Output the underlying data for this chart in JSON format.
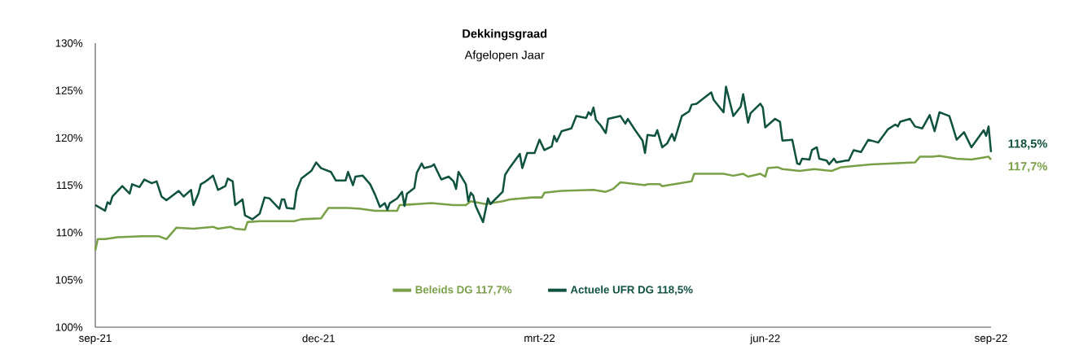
{
  "chart_data": {
    "type": "line",
    "title": "Dekkingsgraad",
    "subtitle": "Afgelopen Jaar",
    "xlim": [
      "2021-09-01",
      "2022-09-01"
    ],
    "xticks": [
      {
        "value": "2021-09-01",
        "label": "sep-21"
      },
      {
        "value": "2021-12-01",
        "label": "dec-21"
      },
      {
        "value": "2022-03-01",
        "label": "mrt-22"
      },
      {
        "value": "2022-06-01",
        "label": "jun-22"
      },
      {
        "value": "2022-09-01",
        "label": "sep-22"
      }
    ],
    "ylim": [
      100,
      130
    ],
    "yticks": [
      {
        "value": 100,
        "label": "100%"
      },
      {
        "value": 105,
        "label": "105%"
      },
      {
        "value": 110,
        "label": "110%"
      },
      {
        "value": 115,
        "label": "115%"
      },
      {
        "value": 120,
        "label": "120%"
      },
      {
        "value": 125,
        "label": "125%"
      },
      {
        "value": 130,
        "label": "130%"
      }
    ],
    "grid": false,
    "legend": "bottom",
    "marker": "none",
    "line_style": "solid",
    "series": [
      {
        "name": "Beleids DG 117,7%",
        "color": "#78a046",
        "x": [
          "2021-09-01",
          "2021-09-02",
          "2021-09-05",
          "2021-09-10",
          "2021-09-20",
          "2021-09-27",
          "2021-09-30",
          "2021-10-04",
          "2021-10-11",
          "2021-10-19",
          "2021-10-21",
          "2021-10-26",
          "2021-10-28",
          "2021-11-01",
          "2021-11-02",
          "2021-11-07",
          "2021-11-21",
          "2021-11-24",
          "2021-12-02",
          "2021-12-05",
          "2021-12-13",
          "2021-12-18",
          "2021-12-24",
          "2022-01-02",
          "2022-01-03",
          "2022-01-10",
          "2022-01-16",
          "2022-01-25",
          "2022-01-30",
          "2022-02-01",
          "2022-02-07",
          "2022-02-14",
          "2022-02-17",
          "2022-02-26",
          "2022-03-02",
          "2022-03-03",
          "2022-03-10",
          "2022-03-23",
          "2022-03-28",
          "2022-03-31",
          "2022-04-03",
          "2022-04-13",
          "2022-04-14",
          "2022-04-19",
          "2022-04-20",
          "2022-04-27",
          "2022-05-02",
          "2022-05-03",
          "2022-05-15",
          "2022-05-19",
          "2022-05-23",
          "2022-05-25",
          "2022-05-30",
          "2022-06-01",
          "2022-06-02",
          "2022-06-06",
          "2022-06-08",
          "2022-06-15",
          "2022-06-21",
          "2022-06-28",
          "2022-07-02",
          "2022-07-14",
          "2022-08-01",
          "2022-08-03",
          "2022-08-08",
          "2022-08-11",
          "2022-08-18",
          "2022-08-24",
          "2022-08-31",
          "2022-09-01"
        ],
        "values": [
          108.1,
          109.3,
          109.3,
          109.5,
          109.6,
          109.6,
          109.3,
          110.5,
          110.4,
          110.6,
          110.4,
          110.6,
          110.4,
          110.3,
          111.1,
          111.2,
          111.2,
          111.4,
          111.5,
          112.6,
          112.6,
          112.5,
          112.3,
          112.3,
          112.9,
          113.0,
          113.1,
          112.9,
          112.9,
          113.3,
          113.0,
          113.3,
          113.5,
          113.7,
          113.7,
          114.2,
          114.4,
          114.5,
          114.3,
          114.6,
          115.3,
          115.0,
          115.1,
          115.1,
          114.9,
          115.2,
          115.4,
          116.2,
          116.2,
          116.0,
          116.2,
          115.9,
          116.2,
          115.9,
          116.8,
          116.9,
          116.7,
          116.5,
          116.7,
          116.5,
          116.9,
          117.2,
          117.4,
          118.0,
          118.0,
          118.1,
          117.8,
          117.7,
          118.0,
          117.7
        ]
      },
      {
        "name": "Actuele UFR DG 118,5%",
        "color": "#0f5240",
        "x": [
          "2021-09-01",
          "2021-09-05",
          "2021-09-06",
          "2021-09-07",
          "2021-09-08",
          "2021-09-12",
          "2021-09-15",
          "2021-09-16",
          "2021-09-19",
          "2021-09-21",
          "2021-09-24",
          "2021-09-26",
          "2021-09-28",
          "2021-09-30",
          "2021-10-05",
          "2021-10-07",
          "2021-10-10",
          "2021-10-11",
          "2021-10-13",
          "2021-10-14",
          "2021-10-16",
          "2021-10-19",
          "2021-10-21",
          "2021-10-24",
          "2021-10-25",
          "2021-10-27",
          "2021-10-28",
          "2021-10-31",
          "2021-11-01",
          "2021-11-04",
          "2021-11-07",
          "2021-11-09",
          "2021-11-11",
          "2021-11-15",
          "2021-11-16",
          "2021-11-17",
          "2021-11-18",
          "2021-11-21",
          "2021-11-22",
          "2021-11-24",
          "2021-11-28",
          "2021-11-30",
          "2021-12-02",
          "2021-12-06",
          "2021-12-08",
          "2021-12-12",
          "2021-12-13",
          "2021-12-15",
          "2021-12-16",
          "2021-12-19",
          "2021-12-22",
          "2021-12-24",
          "2021-12-26",
          "2021-12-28",
          "2021-12-29",
          "2021-12-30",
          "2022-01-02",
          "2022-01-04",
          "2022-01-05",
          "2022-01-06",
          "2022-01-09",
          "2022-01-10",
          "2022-01-12",
          "2022-01-13",
          "2022-01-16",
          "2022-01-17",
          "2022-01-20",
          "2022-01-23",
          "2022-01-25",
          "2022-01-26",
          "2022-01-27",
          "2022-01-30",
          "2022-01-31",
          "2022-02-01",
          "2022-02-02",
          "2022-02-03",
          "2022-02-06",
          "2022-02-08",
          "2022-02-09",
          "2022-02-14",
          "2022-02-15",
          "2022-02-17",
          "2022-02-21",
          "2022-02-22",
          "2022-02-24",
          "2022-02-27",
          "2022-03-01",
          "2022-03-03",
          "2022-03-06",
          "2022-03-07",
          "2022-03-08",
          "2022-03-10",
          "2022-03-14",
          "2022-03-16",
          "2022-03-20",
          "2022-03-21",
          "2022-03-22",
          "2022-03-23",
          "2022-03-24",
          "2022-03-26",
          "2022-03-28",
          "2022-03-29",
          "2022-04-03",
          "2022-04-05",
          "2022-04-06",
          "2022-04-09",
          "2022-04-12",
          "2022-04-13",
          "2022-04-14",
          "2022-04-17",
          "2022-04-18",
          "2022-04-20",
          "2022-04-22",
          "2022-04-24",
          "2022-04-25",
          "2022-04-28",
          "2022-05-01",
          "2022-05-02",
          "2022-05-04",
          "2022-05-07",
          "2022-05-10",
          "2022-05-11",
          "2022-05-15",
          "2022-05-16",
          "2022-05-19",
          "2022-05-22",
          "2022-05-23",
          "2022-05-25",
          "2022-05-26",
          "2022-05-30",
          "2022-05-31",
          "2022-06-01",
          "2022-06-05",
          "2022-06-07",
          "2022-06-08",
          "2022-06-12",
          "2022-06-14",
          "2022-06-15",
          "2022-06-16",
          "2022-06-19",
          "2022-06-20",
          "2022-06-22",
          "2022-06-23",
          "2022-06-26",
          "2022-06-27",
          "2022-06-29",
          "2022-06-30",
          "2022-07-04",
          "2022-07-05",
          "2022-07-07",
          "2022-07-10",
          "2022-07-13",
          "2022-07-17",
          "2022-07-21",
          "2022-07-24",
          "2022-07-25",
          "2022-07-26",
          "2022-07-30",
          "2022-08-01",
          "2022-08-04",
          "2022-08-07",
          "2022-08-09",
          "2022-08-11",
          "2022-08-15",
          "2022-08-16",
          "2022-08-18",
          "2022-08-21",
          "2022-08-24",
          "2022-08-29",
          "2022-08-30",
          "2022-08-31",
          "2022-09-01"
        ],
        "values": [
          112.9,
          112.3,
          113.2,
          113.0,
          113.8,
          114.9,
          114.1,
          115.1,
          114.8,
          115.6,
          115.2,
          115.4,
          113.8,
          113.4,
          114.4,
          113.8,
          114.5,
          112.9,
          114.1,
          115.1,
          115.4,
          116.0,
          114.5,
          114.9,
          115.7,
          115.4,
          112.9,
          113.5,
          111.8,
          111.4,
          112.0,
          113.7,
          113.6,
          112.5,
          113.5,
          113.5,
          112.6,
          112.5,
          114.4,
          115.7,
          116.5,
          117.4,
          116.8,
          116.4,
          115.5,
          115.5,
          116.4,
          115.0,
          115.9,
          116.0,
          115.1,
          114.0,
          112.7,
          113.1,
          112.4,
          113.1,
          113.6,
          114.3,
          112.8,
          114.1,
          114.7,
          116.3,
          117.3,
          116.8,
          117.0,
          117.2,
          115.6,
          115.9,
          115.4,
          114.6,
          116.4,
          115.1,
          113.3,
          114.2,
          113.9,
          112.8,
          111.1,
          113.6,
          113.0,
          114.3,
          116.1,
          116.9,
          118.3,
          116.8,
          118.4,
          118.4,
          119.8,
          118.7,
          119.1,
          120.2,
          119.6,
          120.7,
          121.0,
          122.3,
          122.1,
          122.7,
          122.4,
          123.2,
          121.9,
          121.3,
          120.5,
          122.0,
          122.3,
          121.5,
          122.0,
          120.8,
          119.7,
          118.4,
          120.3,
          120.2,
          120.8,
          119.0,
          119.4,
          120.4,
          119.7,
          122.3,
          122.8,
          123.5,
          123.6,
          124.2,
          124.8,
          124.0,
          122.7,
          125.4,
          122.3,
          123.3,
          124.6,
          121.6,
          122.6,
          123.6,
          123.2,
          121.1,
          122.0,
          121.7,
          119.7,
          119.8,
          117.3,
          117.2,
          117.8,
          117.7,
          118.7,
          119.0,
          117.8,
          117.6,
          117.2,
          117.8,
          117.4,
          117.6,
          117.6,
          118.7,
          118.5,
          119.8,
          119.5,
          120.9,
          121.4,
          121.2,
          121.7,
          122.0,
          121.2,
          121.0,
          122.4,
          120.7,
          122.7,
          122.3,
          121.5,
          119.8,
          120.6,
          119.0,
          120.8,
          120.2,
          121.2,
          118.5
        ]
      }
    ],
    "annotations": [
      {
        "text": "118,5%",
        "x": "2022-09-01",
        "y": 118.5
      },
      {
        "text": "117,7%",
        "x": "2022-09-01",
        "y": 117.7
      }
    ]
  }
}
